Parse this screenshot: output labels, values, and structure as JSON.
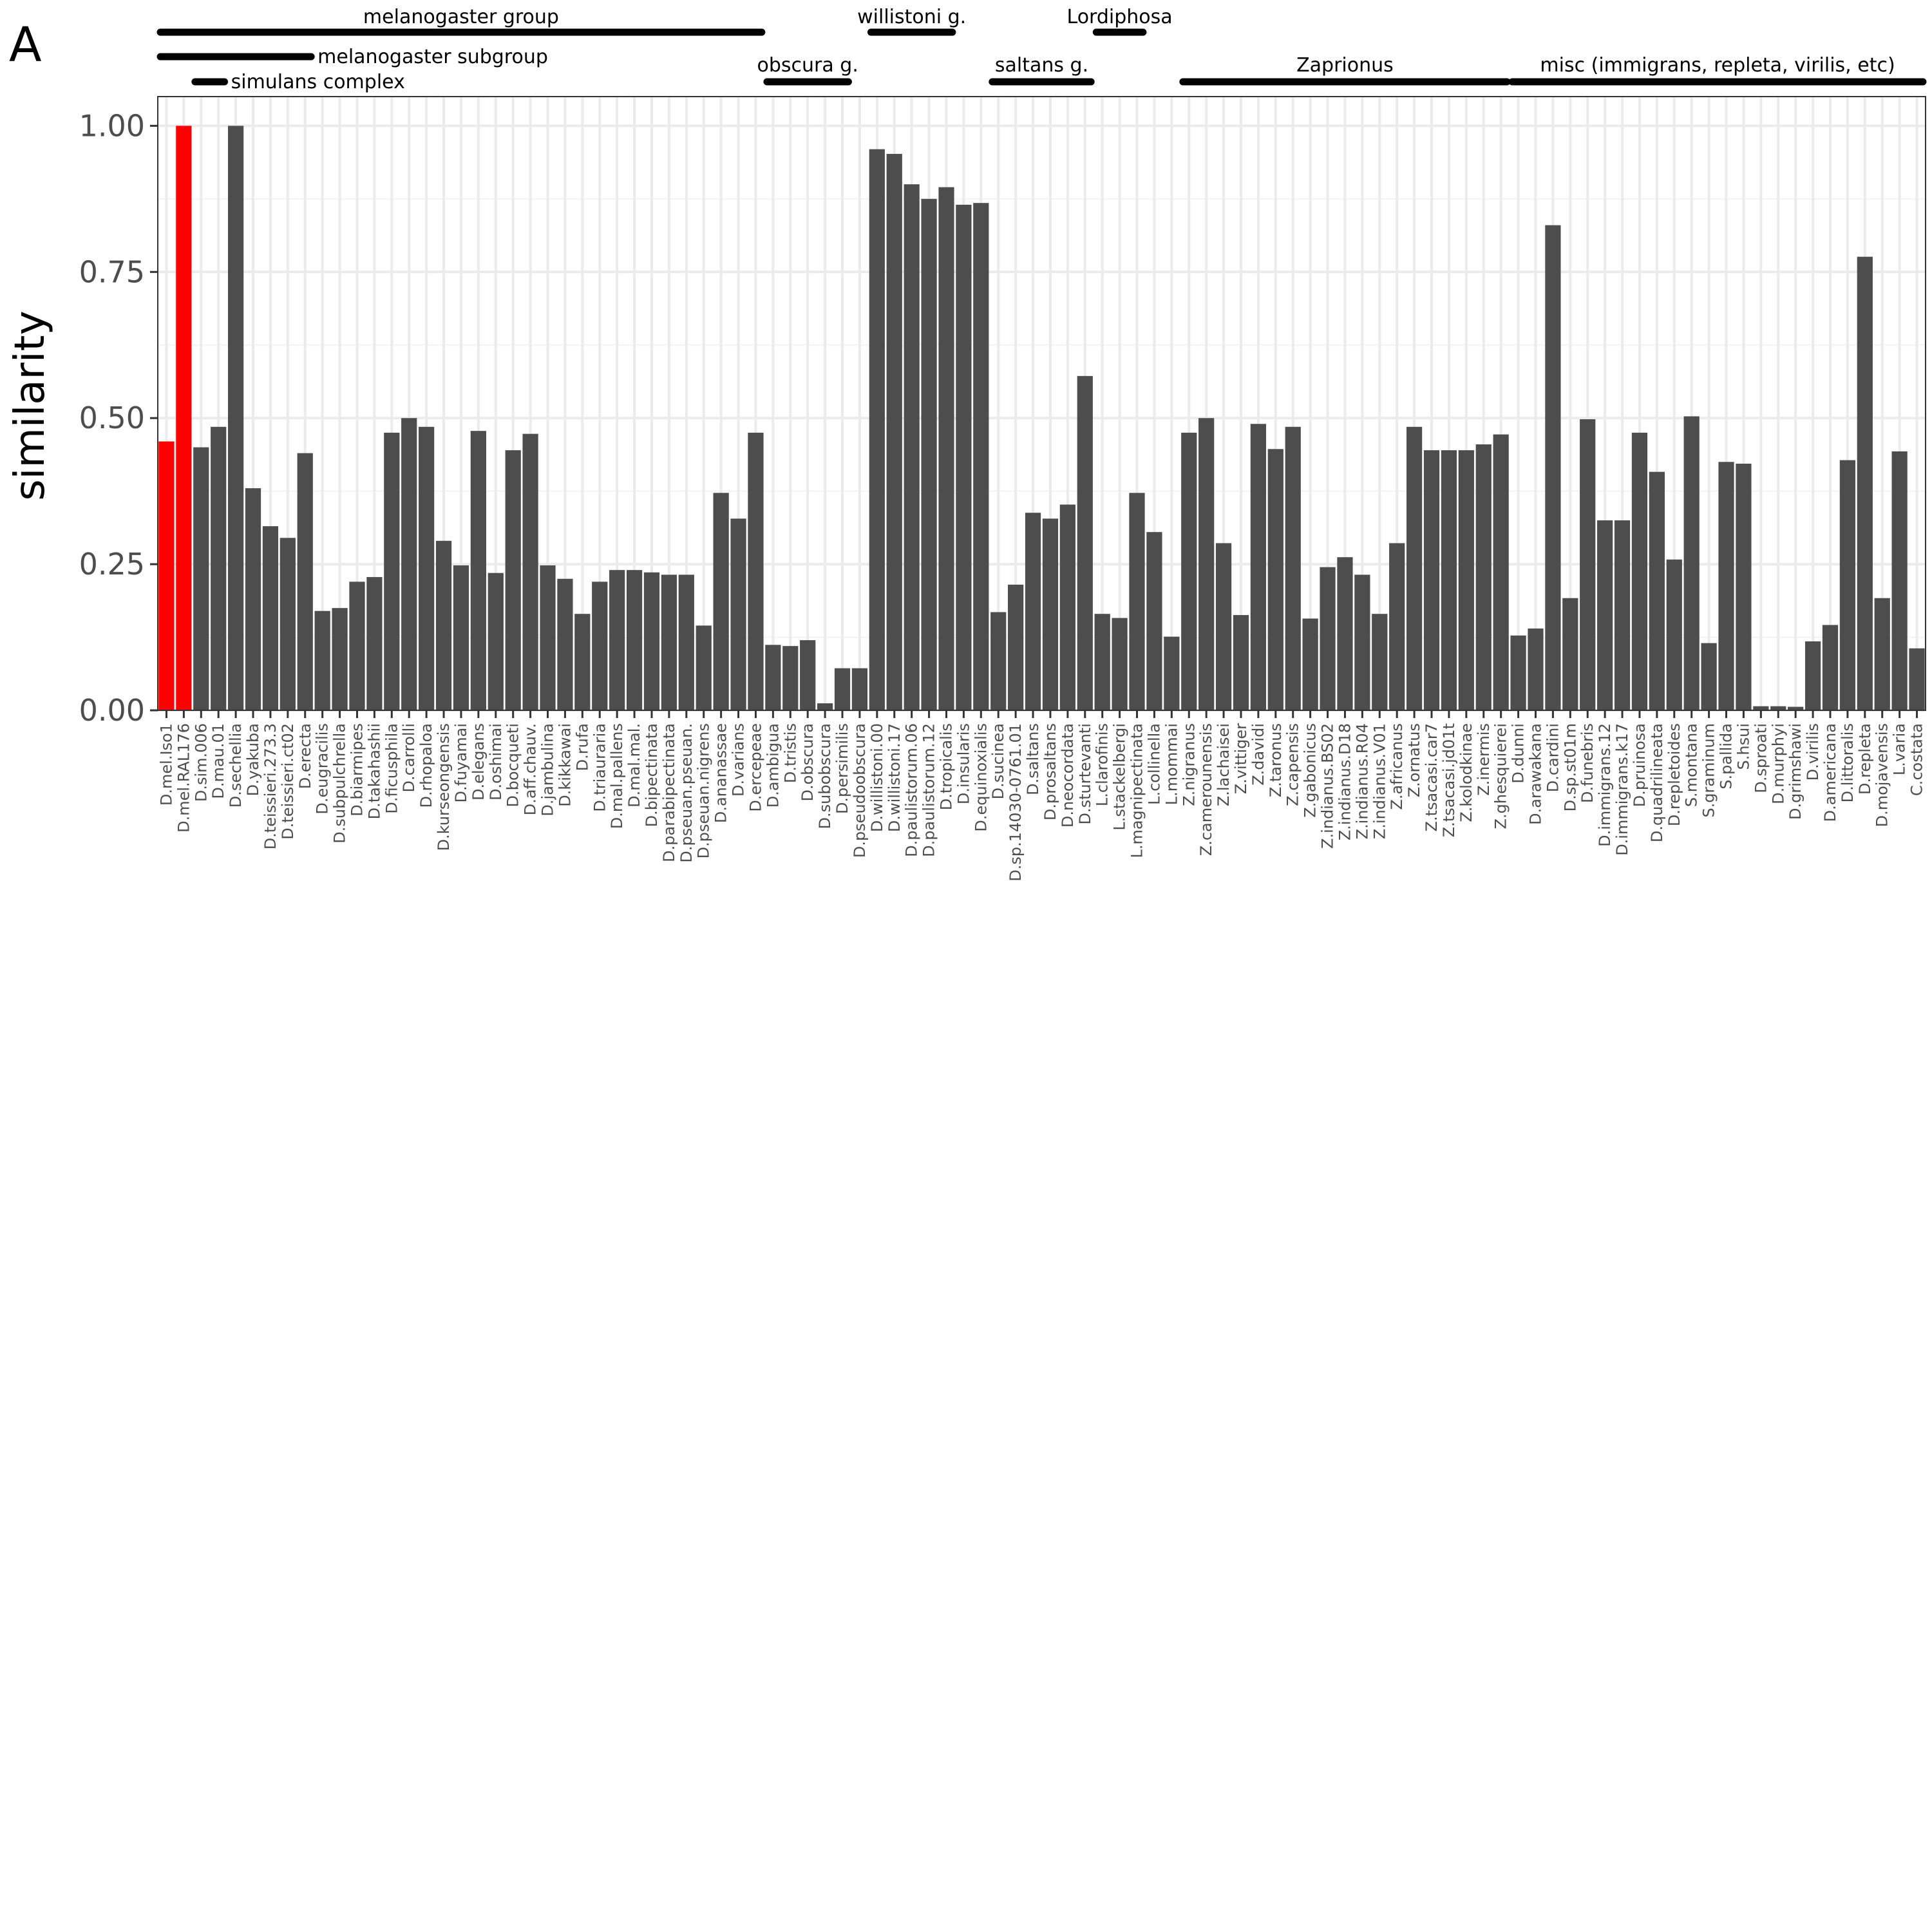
{
  "panel_label": "A",
  "chart_data": {
    "type": "bar",
    "ylabel": "similarity",
    "xlabel": "",
    "ylim": [
      0,
      1.05
    ],
    "yticks": [
      "0.00",
      "0.25",
      "0.50",
      "0.75",
      "1.00"
    ],
    "grid": true,
    "highlight_color": "#ff0000",
    "bar_color": "#4d4d4d",
    "categories": [
      "D.mel.Iso1",
      "D.mel.RAL176",
      "D.sim.006",
      "D.mau.01",
      "D.sechellia",
      "D.yakuba",
      "D.teissieri.273.3",
      "D.teissieri.ct02",
      "D.erecta",
      "D.eugracilis",
      "D.subpulchrella",
      "D.biarmipes",
      "D.takahashii",
      "D.ficusphila",
      "D.carrolli",
      "D.rhopaloa",
      "D.kurseongensis",
      "D.fuyamai",
      "D.elegans",
      "D.oshimai",
      "D.bocqueti",
      "D.aff.chauv.",
      "D.jambulina",
      "D.kikkawai",
      "D.rufa",
      "D.triauraria",
      "D.mal.pallens",
      "D.mal.mal.",
      "D.bipectinata",
      "D.parabipectinata",
      "D.pseuan.pseuan.",
      "D.pseuan.nigrens",
      "D.ananassae",
      "D.varians",
      "D.ercepeae",
      "D.ambigua",
      "D.tristis",
      "D.obscura",
      "D.subobscura",
      "D.persimilis",
      "D.pseudoobscura",
      "D.willistoni.00",
      "D.willistoni.17",
      "D.paulistorum.06",
      "D.paulistorum.12",
      "D.tropicalis",
      "D.insularis",
      "D.equinoxialis",
      "D.sucinea",
      "D.sp.14030-0761.01",
      "D.saltans",
      "D.prosaltans",
      "D.neocordata",
      "D.sturtevanti",
      "L.clarofinis",
      "L.stackelbergi",
      "L.magnipectinata",
      "L.collinella",
      "L.mommai",
      "Z.nigranus",
      "Z.camerounensis",
      "Z.lachaisei",
      "Z.vittiger",
      "Z.davidi",
      "Z.taronus",
      "Z.capensis",
      "Z.gabonicus",
      "Z.indianus.BS02",
      "Z.indianus.D18",
      "Z.indianus.R04",
      "Z.indianus.V01",
      "Z.africanus",
      "Z.ornatus",
      "Z.tsacasi.car7",
      "Z.tsacasi.jd01t",
      "Z.kolodkinae",
      "Z.inermis",
      "Z.ghesquierei",
      "D.dunni",
      "D.arawakana",
      "D.cardini",
      "D.sp.st01m",
      "D.funebris",
      "D.immigrans.12",
      "D.immigrans.k17",
      "D.pruinosa",
      "D.quadrilineata",
      "D.repletoides",
      "S.montana",
      "S.graminum",
      "S.pallida",
      "S.hsui",
      "D.sproati",
      "D.murphyi",
      "D.grimshawi",
      "D.virilis",
      "D.americana",
      "D.littoralis",
      "D.repleta",
      "D.mojavensis",
      "L.varia",
      "C.costata"
    ],
    "values": [
      0.46,
      1.0,
      0.45,
      0.485,
      1.0,
      0.38,
      0.315,
      0.295,
      0.44,
      0.17,
      0.175,
      0.22,
      0.228,
      0.475,
      0.5,
      0.485,
      0.29,
      0.248,
      0.478,
      0.235,
      0.445,
      0.473,
      0.248,
      0.225,
      0.165,
      0.22,
      0.24,
      0.24,
      0.236,
      0.232,
      0.232,
      0.145,
      0.372,
      0.328,
      0.475,
      0.112,
      0.11,
      0.12,
      0.012,
      0.072,
      0.072,
      0.96,
      0.952,
      0.9,
      0.875,
      0.895,
      0.865,
      0.868,
      0.168,
      0.215,
      0.338,
      0.328,
      0.352,
      0.572,
      0.165,
      0.158,
      0.372,
      0.305,
      0.126,
      0.475,
      0.5,
      0.286,
      0.163,
      0.49,
      0.447,
      0.485,
      0.157,
      0.245,
      0.262,
      0.232,
      0.165,
      0.286,
      0.485,
      0.445,
      0.445,
      0.445,
      0.455,
      0.472,
      0.128,
      0.14,
      0.83,
      0.192,
      0.498,
      0.325,
      0.325,
      0.475,
      0.408,
      0.258,
      0.503,
      0.115,
      0.425,
      0.422,
      0.007,
      0.007,
      0.006,
      0.118,
      0.146,
      0.428,
      0.776,
      0.192,
      0.443,
      0.106
    ],
    "highlighted": [
      "D.mel.Iso1",
      "D.mel.RAL176"
    ],
    "group_annotations": [
      {
        "label": "melanogaster group",
        "from": "D.mel.Iso1",
        "to": "D.ercepeae",
        "row": 1
      },
      {
        "label": "melanogaster subgroup",
        "from": "D.mel.Iso1",
        "to": "D.erecta",
        "row": 2
      },
      {
        "label": "simulans complex",
        "from": "D.sim.006",
        "to": "D.mau.01",
        "row": 3
      },
      {
        "label": "obscura g.",
        "from": "D.ambigua",
        "to": "D.persimilis",
        "row": 3
      },
      {
        "label": "willistoni g.",
        "from": "D.willistoni.00",
        "to": "D.tropicalis",
        "row": 1
      },
      {
        "label": "saltans g.",
        "from": "D.sucinea",
        "to": "D.sturtevanti",
        "row": 3
      },
      {
        "label": "Lordiphosa",
        "from": "L.clarofinis",
        "to": "L.magnipectinata",
        "row": 1
      },
      {
        "label": "Zaprionus",
        "from": "Z.nigranus",
        "to": "Z.ghesquierei",
        "row": 3
      },
      {
        "label": "misc (immigrans, repleta, virilis, etc)",
        "from": "D.dunni",
        "to": "C.costata",
        "row": 3
      }
    ]
  }
}
